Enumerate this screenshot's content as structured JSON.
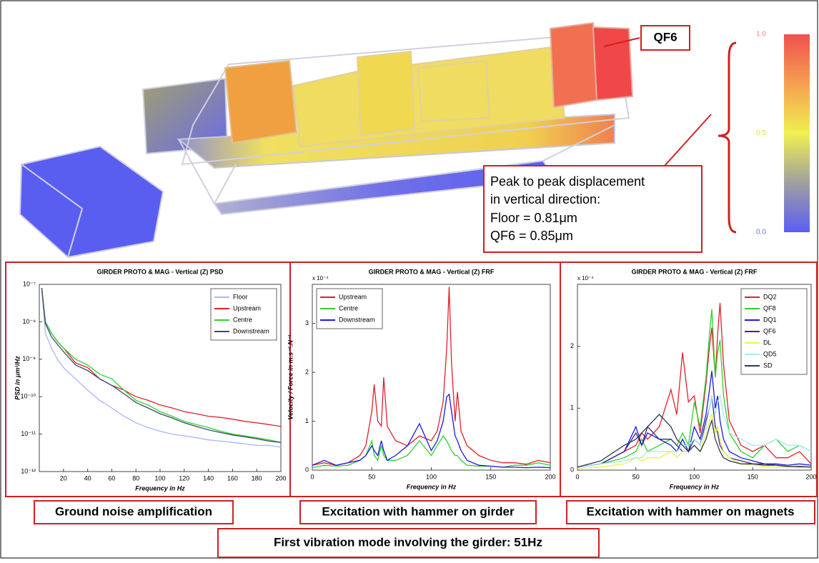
{
  "figure": {
    "qf6_label": "QF6",
    "displacement_note": [
      "Peak to peak displacement",
      "in vertical direction:",
      "Floor = 0.81μm",
      "QF6 = 0.85μm"
    ],
    "colorbar_lim": [
      0,
      1
    ],
    "colorbar_ticks": [
      {
        "value": 1,
        "label": "1.0"
      },
      {
        "value": 0.5,
        "label": "0.5"
      },
      {
        "value": 0,
        "label": "0.0"
      }
    ],
    "captions": [
      "Ground noise amplification",
      "Excitation with hammer on girder",
      "Excitation with hammer on magnets"
    ],
    "summary": "First vibration mode involving the girder: 51Hz"
  },
  "chart_data": [
    {
      "type": "line",
      "title": "GIRDER PROTO & MAG - Vertical (Z) PSD",
      "x_label": "Frequency in Hz",
      "y_label": "PSD in μm²/Hz",
      "yscale": "log",
      "legend": "upper right",
      "x": [
        2,
        5,
        10,
        15,
        20,
        30,
        40,
        50,
        60,
        70,
        80,
        90,
        100,
        110,
        120,
        130,
        140,
        150,
        160,
        170,
        180,
        190,
        200
      ],
      "series": [
        {
          "name": "Floor",
          "color": "#aab4ff",
          "values": [
            8e-08,
            5e-09,
            2e-09,
            1e-09,
            6e-10,
            3e-10,
            1.5e-10,
            8e-11,
            5e-11,
            3e-11,
            2e-11,
            1.5e-11,
            1.2e-11,
            1e-11,
            9e-12,
            8e-12,
            7e-12,
            6.5e-12,
            6e-12,
            5.5e-12,
            5e-12,
            5e-12,
            4.5e-12
          ]
        },
        {
          "name": "Upstream",
          "color": "#e0202a",
          "values": [
            8e-08,
            1e-08,
            5e-09,
            3e-09,
            2e-09,
            8e-10,
            6e-10,
            3e-10,
            2e-10,
            1.5e-10,
            1e-10,
            8e-11,
            6e-11,
            5e-11,
            4e-11,
            3.5e-11,
            3e-11,
            2.8e-11,
            2.5e-11,
            2.2e-11,
            2e-11,
            1.8e-11,
            1.6e-11
          ]
        },
        {
          "name": "Centre",
          "color": "#2ed02e",
          "values": [
            8e-08,
            1e-08,
            5e-09,
            3e-09,
            2e-09,
            1e-09,
            7e-10,
            4e-10,
            3e-10,
            1.5e-10,
            8e-11,
            6e-11,
            4e-11,
            3e-11,
            2.2e-11,
            1.8e-11,
            1.5e-11,
            1.2e-11,
            1e-11,
            9e-12,
            8e-12,
            7e-12,
            6e-12
          ]
        },
        {
          "name": "Downstream",
          "color": "#3b4a6b",
          "values": [
            8e-08,
            9e-09,
            4e-09,
            2.5e-09,
            1.6e-09,
            7e-10,
            5e-10,
            3e-10,
            2e-10,
            1.2e-10,
            7e-11,
            5e-11,
            3.5e-11,
            2.7e-11,
            2e-11,
            1.6e-11,
            1.3e-11,
            1.1e-11,
            9.5e-12,
            8.5e-12,
            7.5e-12,
            6.5e-12,
            6e-12
          ]
        }
      ],
      "xlim": [
        0,
        200
      ],
      "xticks": [
        20,
        40,
        60,
        80,
        100,
        120,
        140,
        160,
        180,
        200
      ],
      "ylim": [
        1e-12,
        1e-07
      ],
      "yticks": [
        {
          "value": 1e-12,
          "label": "10⁻¹²"
        },
        {
          "value": 1e-11,
          "label": "10⁻¹¹"
        },
        {
          "value": 1e-10,
          "label": "10⁻¹⁰"
        },
        {
          "value": 1e-09,
          "label": "10⁻⁹"
        },
        {
          "value": 1e-08,
          "label": "10⁻⁸"
        },
        {
          "value": 1e-07,
          "label": "10⁻⁷"
        }
      ]
    },
    {
      "type": "line",
      "title": "GIRDER PROTO & MAG - Vertical (Z) FRF",
      "x_label": "Frequency in Hz",
      "y_label": "Velocity / Force in m.s⁻¹.N⁻¹",
      "y_multiplier": "x 10⁻⁴",
      "legend": "upper left",
      "x": [
        0,
        10,
        20,
        30,
        40,
        45,
        50,
        52,
        55,
        58,
        60,
        63,
        70,
        80,
        90,
        100,
        105,
        110,
        113,
        115,
        117,
        120,
        122,
        125,
        130,
        140,
        150,
        160,
        170,
        180,
        190,
        200
      ],
      "series": [
        {
          "name": "Upstream",
          "color": "#e0202a",
          "values": [
            0.1,
            0.15,
            0.1,
            0.15,
            0.3,
            0.5,
            1.2,
            1.75,
            1.0,
            0.9,
            1.9,
            0.9,
            0.6,
            0.5,
            0.7,
            0.6,
            0.8,
            1.4,
            2.5,
            3.75,
            2.2,
            1.0,
            1.6,
            0.8,
            0.5,
            0.3,
            0.2,
            0.15,
            0.15,
            0.12,
            0.2,
            0.15
          ]
        },
        {
          "name": "Centre",
          "color": "#2ed02e",
          "values": [
            0.05,
            0.1,
            0.08,
            0.1,
            0.2,
            0.3,
            0.6,
            0.3,
            0.2,
            0.5,
            0.3,
            0.2,
            0.2,
            0.3,
            0.6,
            0.3,
            0.5,
            0.7,
            0.6,
            0.5,
            0.4,
            0.3,
            0.3,
            0.2,
            0.1,
            0.08,
            0.08,
            0.06,
            0.1,
            0.1,
            0.15,
            0.1
          ]
        },
        {
          "name": "Downstream",
          "color": "#1a1ae0",
          "values": [
            0.1,
            0.2,
            0.1,
            0.15,
            0.2,
            0.3,
            0.5,
            0.4,
            0.3,
            0.6,
            0.4,
            0.2,
            0.3,
            0.5,
            0.95,
            0.4,
            0.6,
            1.0,
            1.5,
            1.55,
            1.2,
            0.7,
            0.6,
            0.4,
            0.2,
            0.1,
            0.08,
            0.06,
            0.06,
            0.05,
            0.06,
            0.05
          ]
        }
      ],
      "xlim": [
        0,
        200
      ],
      "xticks": [
        0,
        50,
        100,
        150,
        200
      ],
      "ylim": [
        0,
        3.8
      ],
      "yticks": [
        0,
        1,
        2,
        3
      ]
    },
    {
      "type": "line",
      "title": "GIRDER PROTO & MAG - Vertical (Z) FRF",
      "x_label": "Frequency in Hz",
      "y_multiplier": "x 10⁻⁴",
      "legend": "upper right",
      "x": [
        0,
        20,
        40,
        50,
        55,
        60,
        70,
        80,
        85,
        90,
        95,
        100,
        105,
        110,
        113,
        115,
        118,
        120,
        122,
        125,
        130,
        140,
        150,
        160,
        170,
        180,
        190,
        200
      ],
      "series": [
        {
          "name": "DQ2",
          "color": "#e0202a",
          "values": [
            0.05,
            0.1,
            0.3,
            0.4,
            0.6,
            0.5,
            0.7,
            1.3,
            0.9,
            1.9,
            1.1,
            1.2,
            0.6,
            1.4,
            2.0,
            2.3,
            1.5,
            2.2,
            2.7,
            1.7,
            0.8,
            0.4,
            0.3,
            0.4,
            0.2,
            0.2,
            0.3,
            0.1
          ]
        },
        {
          "name": "QF8",
          "color": "#2ed02e",
          "values": [
            0.05,
            0.1,
            0.2,
            0.3,
            0.5,
            0.3,
            0.4,
            0.5,
            0.4,
            0.6,
            0.4,
            1.1,
            0.7,
            1.5,
            2.2,
            2.6,
            1.5,
            1.9,
            2.1,
            1.2,
            0.6,
            0.3,
            0.2,
            0.4,
            0.5,
            0.3,
            0.4,
            0.3
          ]
        },
        {
          "name": "DQ1",
          "color": "#1a1ae0",
          "values": [
            0.05,
            0.1,
            0.3,
            0.7,
            0.4,
            0.6,
            0.5,
            0.4,
            0.3,
            0.5,
            0.3,
            0.7,
            0.5,
            0.9,
            1.3,
            1.6,
            1.0,
            1.2,
            0.8,
            0.5,
            0.3,
            0.2,
            0.15,
            0.1,
            0.1,
            0.08,
            0.1,
            0.08
          ]
        },
        {
          "name": "QF6",
          "color": "#3a2a8a",
          "values": [
            0.05,
            0.1,
            0.3,
            0.6,
            0.4,
            0.7,
            0.5,
            0.5,
            0.4,
            0.3,
            0.3,
            0.5,
            0.4,
            0.8,
            1.0,
            1.2,
            0.7,
            0.6,
            0.4,
            0.3,
            0.2,
            0.15,
            0.1,
            0.1,
            0.08,
            0.06,
            0.05,
            0.05
          ]
        },
        {
          "name": "DL",
          "color": "#f0f050",
          "values": [
            0.03,
            0.05,
            0.1,
            0.2,
            0.15,
            0.2,
            0.2,
            0.3,
            0.2,
            0.3,
            0.3,
            0.4,
            0.3,
            0.6,
            0.8,
            0.9,
            0.6,
            0.7,
            0.5,
            0.3,
            0.2,
            0.1,
            0.08,
            0.06,
            0.05,
            0.05,
            0.04,
            0.04
          ]
        },
        {
          "name": "QD5",
          "color": "#a8e8f0",
          "values": [
            0.05,
            0.1,
            0.15,
            0.2,
            0.2,
            0.3,
            0.3,
            0.3,
            0.3,
            0.4,
            0.4,
            0.5,
            0.4,
            0.7,
            1.0,
            1.2,
            0.9,
            1.1,
            1.2,
            0.9,
            0.6,
            0.5,
            0.4,
            0.4,
            0.5,
            0.4,
            0.4,
            0.3
          ]
        },
        {
          "name": "SD",
          "color": "#303a50",
          "values": [
            0.05,
            0.15,
            0.4,
            0.5,
            0.6,
            0.7,
            0.9,
            0.7,
            0.5,
            0.4,
            0.3,
            0.4,
            0.3,
            0.5,
            0.7,
            0.8,
            0.5,
            0.4,
            0.3,
            0.2,
            0.15,
            0.1,
            0.1,
            0.08,
            0.08,
            0.06,
            0.06,
            0.05
          ]
        }
      ],
      "xlim": [
        0,
        200
      ],
      "xticks": [
        0,
        50,
        100,
        150,
        200
      ],
      "ylim": [
        0,
        3
      ],
      "yticks": [
        0,
        1,
        2
      ]
    }
  ]
}
